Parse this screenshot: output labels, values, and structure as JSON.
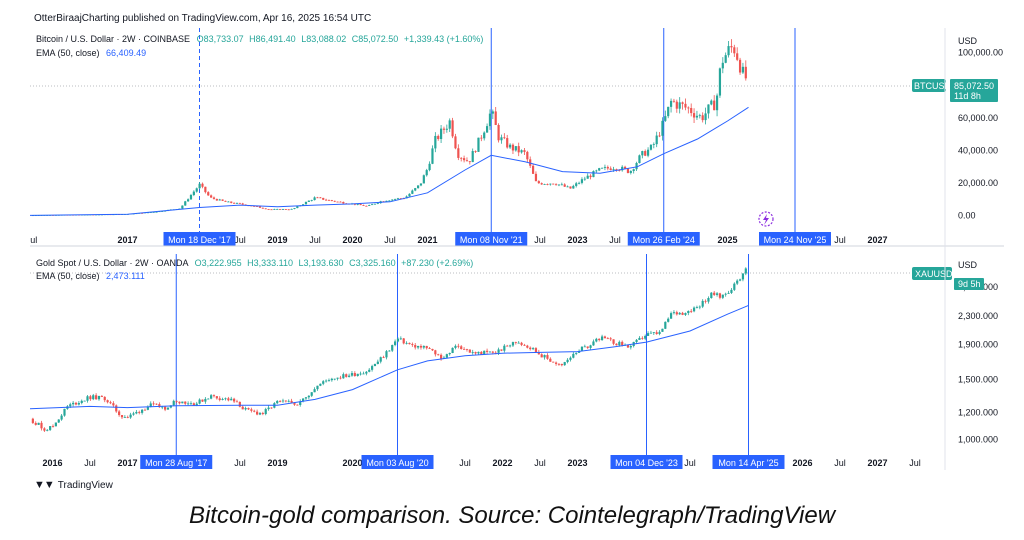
{
  "header": {
    "publisher": "OtterBiraajCharting published on TradingView.com, Apr 16, 2025 16:54 UTC"
  },
  "brand": {
    "name": "TradingView"
  },
  "caption": "Bitcoin-gold comparison. Source: Cointelegraph/TradingView",
  "chart_data": [
    {
      "type": "candlestick",
      "legend": {
        "symbol": "Bitcoin / U.S. Dollar · 2W · COINBASE",
        "ohlc": [
          "O83,733.07",
          "H86,491.40",
          "L83,088.02",
          "C85,072.50",
          "+1,339.43 (+1.60%)"
        ],
        "ema_label": "EMA (50, close)",
        "ema_value": "66,409.49"
      },
      "price_axis": {
        "currency": "USD",
        "ticks": [
          0,
          20000,
          40000,
          60000,
          80000,
          100000
        ],
        "tick_labels": [
          "0.00",
          "20,000.00",
          "40,000.00",
          "60,000.00",
          "",
          "100,000.00"
        ],
        "range": [
          -10000,
          115000
        ]
      },
      "time_axis": {
        "start": 2015.7,
        "end": 2027.9,
        "labels": [
          {
            "t": 2015.75,
            "label": "ul"
          },
          {
            "t": 2017.0,
            "label": "2017"
          },
          {
            "t": 2018.5,
            "label": "Jul"
          },
          {
            "t": 2019.0,
            "label": "2019"
          },
          {
            "t": 2019.5,
            "label": "Jul"
          },
          {
            "t": 2020.0,
            "label": "2020"
          },
          {
            "t": 2020.5,
            "label": "Jul"
          },
          {
            "t": 2021.0,
            "label": "2021"
          },
          {
            "t": 2022.5,
            "label": "Jul"
          },
          {
            "t": 2023.0,
            "label": "2023"
          },
          {
            "t": 2023.5,
            "label": "Jul"
          },
          {
            "t": 2025.0,
            "label": "2025"
          },
          {
            "t": 2026.5,
            "label": "Jul"
          },
          {
            "t": 2027.0,
            "label": "2027"
          }
        ]
      },
      "markers": [
        {
          "t": 2017.96,
          "label": "Mon 18 Dec '17",
          "style": "dashed"
        },
        {
          "t": 2021.85,
          "label": "Mon 08 Nov '21",
          "style": "solid"
        },
        {
          "t": 2024.15,
          "label": "Mon 26 Feb '24",
          "style": "solid"
        },
        {
          "t": 2025.9,
          "label": "Mon 24 Nov '25",
          "style": "solid"
        }
      ],
      "last_price": {
        "symbol": "BTCUSD",
        "value": "85,072.50",
        "countdown": "11d 8h",
        "price": 85072.5
      },
      "series_close": [
        [
          2015.7,
          250
        ],
        [
          2016.0,
          430
        ],
        [
          2016.5,
          650
        ],
        [
          2017.0,
          1000
        ],
        [
          2017.4,
          2500
        ],
        [
          2017.7,
          4500
        ],
        [
          2017.96,
          19000
        ],
        [
          2018.1,
          11000
        ],
        [
          2018.3,
          8500
        ],
        [
          2018.6,
          6500
        ],
        [
          2018.9,
          3800
        ],
        [
          2019.2,
          4000
        ],
        [
          2019.5,
          11000
        ],
        [
          2019.8,
          8500
        ],
        [
          2020.0,
          7200
        ],
        [
          2020.2,
          5800
        ],
        [
          2020.4,
          9200
        ],
        [
          2020.7,
          11000
        ],
        [
          2020.9,
          19000
        ],
        [
          2021.0,
          29000
        ],
        [
          2021.1,
          46000
        ],
        [
          2021.3,
          58000
        ],
        [
          2021.4,
          38000
        ],
        [
          2021.55,
          33000
        ],
        [
          2021.7,
          47000
        ],
        [
          2021.85,
          64000
        ],
        [
          2021.95,
          48000
        ],
        [
          2022.1,
          42000
        ],
        [
          2022.3,
          38000
        ],
        [
          2022.45,
          20000
        ],
        [
          2022.7,
          20000
        ],
        [
          2022.9,
          16500
        ],
        [
          2023.1,
          23000
        ],
        [
          2023.3,
          28000
        ],
        [
          2023.5,
          30000
        ],
        [
          2023.7,
          27000
        ],
        [
          2023.85,
          37000
        ],
        [
          2024.0,
          42000
        ],
        [
          2024.15,
          57000
        ],
        [
          2024.25,
          70000
        ],
        [
          2024.5,
          65000
        ],
        [
          2024.65,
          60000
        ],
        [
          2024.85,
          70000
        ],
        [
          2024.92,
          95000
        ],
        [
          2025.0,
          100000
        ],
        [
          2025.08,
          104000
        ],
        [
          2025.15,
          96000
        ],
        [
          2025.22,
          84000
        ],
        [
          2025.28,
          85000
        ]
      ],
      "ema": [
        [
          2015.7,
          200
        ],
        [
          2017.0,
          900
        ],
        [
          2017.96,
          5000
        ],
        [
          2018.5,
          6500
        ],
        [
          2019.0,
          5500
        ],
        [
          2019.5,
          6500
        ],
        [
          2020.0,
          7200
        ],
        [
          2020.5,
          8500
        ],
        [
          2021.0,
          14000
        ],
        [
          2021.5,
          28000
        ],
        [
          2021.85,
          37000
        ],
        [
          2022.3,
          33000
        ],
        [
          2022.8,
          27000
        ],
        [
          2023.3,
          26000
        ],
        [
          2023.8,
          30000
        ],
        [
          2024.15,
          38000
        ],
        [
          2024.6,
          47000
        ],
        [
          2025.0,
          58000
        ],
        [
          2025.28,
          66409
        ]
      ],
      "mark_color": "#8c2de0"
    },
    {
      "type": "candlestick",
      "legend": {
        "symbol": "Gold Spot / U.S. Dollar · 2W · OANDA",
        "ohlc": [
          "O3,222.955",
          "H3,333.110",
          "L3,193.630",
          "C3,325.160",
          "+87.230 (+2.69%)"
        ],
        "ema_label": "EMA (50, close)",
        "ema_value": "2,473.111"
      },
      "price_axis": {
        "currency": "USD",
        "ticks": [
          1000,
          1200,
          1500,
          1900,
          2300,
          2800
        ],
        "tick_labels": [
          "1,000.000",
          "1,200.000",
          "1,500.000",
          "1,900.000",
          "2,300.000",
          "2,800.000"
        ],
        "scale": "log",
        "range": [
          900,
          3500
        ]
      },
      "time_axis": {
        "start": 2015.7,
        "end": 2027.9,
        "labels": [
          {
            "t": 2016.0,
            "label": "2016"
          },
          {
            "t": 2016.5,
            "label": "Jul"
          },
          {
            "t": 2017.0,
            "label": "2017"
          },
          {
            "t": 2018.5,
            "label": "Jul"
          },
          {
            "t": 2019.0,
            "label": "2019"
          },
          {
            "t": 2020.0,
            "label": "2020"
          },
          {
            "t": 2021.0,
            "label": "21"
          },
          {
            "t": 2021.5,
            "label": "Jul"
          },
          {
            "t": 2022.0,
            "label": "2022"
          },
          {
            "t": 2022.5,
            "label": "Jul"
          },
          {
            "t": 2023.0,
            "label": "2023"
          },
          {
            "t": 2024.5,
            "label": "Jul"
          },
          {
            "t": 2026.0,
            "label": "2026"
          },
          {
            "t": 2026.5,
            "label": "Jul"
          },
          {
            "t": 2027.0,
            "label": "2027"
          },
          {
            "t": 2027.5,
            "label": "Jul"
          }
        ]
      },
      "markers": [
        {
          "t": 2017.65,
          "label": "Mon 28 Aug '17",
          "style": "solid"
        },
        {
          "t": 2020.6,
          "label": "Mon 03 Aug '20",
          "style": "solid"
        },
        {
          "t": 2023.92,
          "label": "Mon 04 Dec '23",
          "style": "solid"
        },
        {
          "t": 2025.28,
          "label": "Mon 14 Apr '25",
          "style": "solid"
        }
      ],
      "last_price": {
        "symbol": "XAUUSD",
        "value": "",
        "countdown": "9d 5h",
        "price": 3325.16
      },
      "series_close": [
        [
          2015.7,
          1150
        ],
        [
          2015.9,
          1070
        ],
        [
          2016.0,
          1090
        ],
        [
          2016.2,
          1250
        ],
        [
          2016.5,
          1330
        ],
        [
          2016.7,
          1320
        ],
        [
          2016.9,
          1180
        ],
        [
          2017.0,
          1160
        ],
        [
          2017.3,
          1260
        ],
        [
          2017.5,
          1240
        ],
        [
          2017.65,
          1300
        ],
        [
          2017.9,
          1270
        ],
        [
          2018.1,
          1340
        ],
        [
          2018.4,
          1300
        ],
        [
          2018.6,
          1210
        ],
        [
          2018.8,
          1190
        ],
        [
          2019.0,
          1285
        ],
        [
          2019.3,
          1280
        ],
        [
          2019.5,
          1420
        ],
        [
          2019.7,
          1510
        ],
        [
          2020.0,
          1550
        ],
        [
          2020.2,
          1590
        ],
        [
          2020.4,
          1740
        ],
        [
          2020.6,
          1970
        ],
        [
          2020.8,
          1880
        ],
        [
          2021.0,
          1850
        ],
        [
          2021.2,
          1730
        ],
        [
          2021.4,
          1890
        ],
        [
          2021.6,
          1790
        ],
        [
          2021.9,
          1800
        ],
        [
          2022.2,
          1940
        ],
        [
          2022.4,
          1840
        ],
        [
          2022.6,
          1720
        ],
        [
          2022.8,
          1640
        ],
        [
          2022.95,
          1800
        ],
        [
          2023.1,
          1860
        ],
        [
          2023.3,
          1990
        ],
        [
          2023.5,
          1920
        ],
        [
          2023.7,
          1870
        ],
        [
          2023.92,
          2030
        ],
        [
          2024.1,
          2050
        ],
        [
          2024.25,
          2340
        ],
        [
          2024.4,
          2350
        ],
        [
          2024.6,
          2450
        ],
        [
          2024.8,
          2680
        ],
        [
          2024.9,
          2620
        ],
        [
          2025.0,
          2700
        ],
        [
          2025.1,
          2850
        ],
        [
          2025.2,
          3050
        ],
        [
          2025.28,
          3325
        ]
      ],
      "ema": [
        [
          2015.7,
          1230
        ],
        [
          2016.5,
          1250
        ],
        [
          2017.0,
          1240
        ],
        [
          2017.65,
          1255
        ],
        [
          2018.5,
          1260
        ],
        [
          2019.0,
          1260
        ],
        [
          2019.5,
          1310
        ],
        [
          2020.0,
          1400
        ],
        [
          2020.6,
          1600
        ],
        [
          2021.0,
          1700
        ],
        [
          2021.5,
          1760
        ],
        [
          2022.0,
          1790
        ],
        [
          2022.5,
          1800
        ],
        [
          2023.0,
          1810
        ],
        [
          2023.5,
          1870
        ],
        [
          2023.92,
          1930
        ],
        [
          2024.5,
          2080
        ],
        [
          2025.0,
          2330
        ],
        [
          2025.28,
          2473.111
        ]
      ]
    }
  ],
  "colors": {
    "up": "#26a69a",
    "down": "#ef5350",
    "ema": "#2962ff",
    "marker": "#2962ff",
    "marker_label_bg": "#2962ff",
    "btc_tag": "#26a69a",
    "xau_tag": "#26a69a"
  }
}
